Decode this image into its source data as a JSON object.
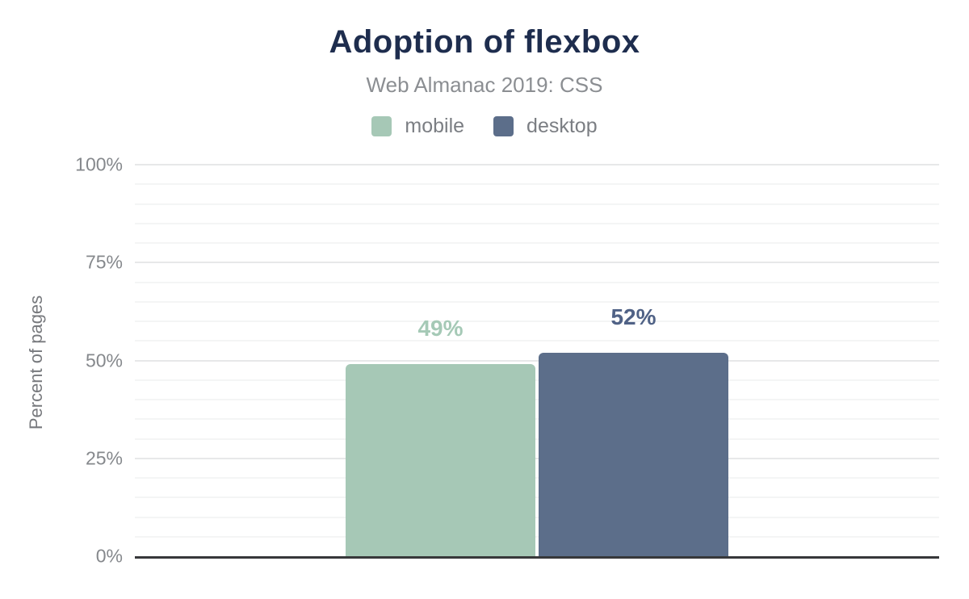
{
  "header": {
    "title": "Adoption of flexbox",
    "subtitle": "Web Almanac 2019: CSS"
  },
  "legend": [
    {
      "id": "mobile",
      "label": "mobile",
      "color": "#a6c8b6"
    },
    {
      "id": "desktop",
      "label": "desktop",
      "color": "#5c6e8a"
    }
  ],
  "chart_data": {
    "type": "bar",
    "title": "Adoption of flexbox",
    "subtitle": "Web Almanac 2019: CSS",
    "categories": [
      "mobile",
      "desktop"
    ],
    "values": [
      49,
      52
    ],
    "value_labels": [
      "49%",
      "52%"
    ],
    "series_colors": [
      "#a6c8b6",
      "#5c6e8a"
    ],
    "value_label_colors": [
      "#a5c9b6",
      "#506286"
    ],
    "xlabel": "",
    "ylabel": "Percent of pages",
    "ylim": [
      0,
      100
    ],
    "yticks": [
      0,
      25,
      50,
      75,
      100
    ],
    "ytick_labels": [
      "0%",
      "25%",
      "50%",
      "75%",
      "100%"
    ],
    "minor_grid_step_percent": 5,
    "grid": true,
    "legend_position": "top",
    "colors": {
      "title_text": "#1e2d4e",
      "muted_text": "#85888c",
      "axis_line": "#37383a",
      "major_gridline": "#e7e8e9",
      "minor_gridline": "#f4f5f5",
      "background": "#ffffff"
    }
  }
}
